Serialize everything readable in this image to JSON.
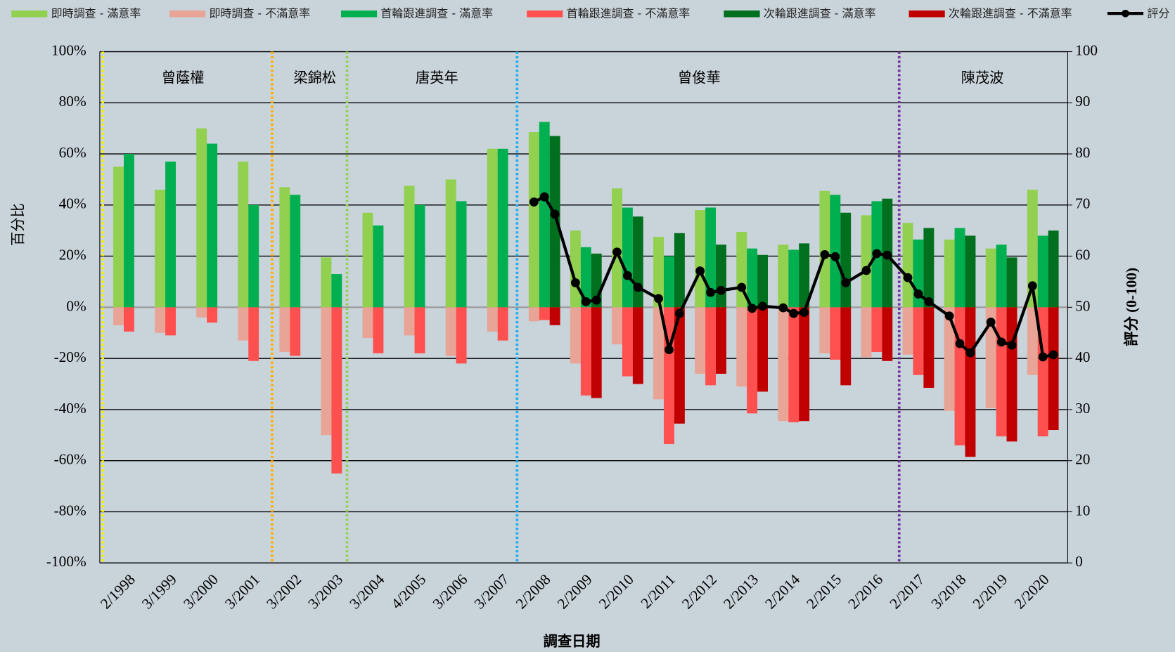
{
  "chart_data": {
    "type": "bar",
    "y_label": "百分比",
    "y2_label": "評分 (0-100)",
    "x_label": "調查日期",
    "categories": [
      "2/1998",
      "3/1999",
      "3/2000",
      "3/2001",
      "3/2002",
      "3/2003",
      "3/2004",
      "4/2005",
      "3/2006",
      "3/2007",
      "2/2008",
      "2/2009",
      "2/2010",
      "2/2011",
      "2/2012",
      "2/2013",
      "2/2014",
      "2/2015",
      "2/2016",
      "2/2017",
      "3/2018",
      "2/2019",
      "2/2020"
    ],
    "series": [
      {
        "name": "即時調查 - 滿意率",
        "color": "#92d050",
        "values": [
          55,
          46,
          70,
          57,
          47,
          19.5,
          37,
          47.5,
          50,
          62,
          68.5,
          30,
          46.5,
          27.5,
          38,
          29.5,
          24.5,
          45.5,
          36,
          33,
          26.5,
          23,
          46
        ]
      },
      {
        "name": "即時調查 - 不滿意率",
        "color": "#e8a496",
        "values": [
          -7,
          -10,
          -4,
          -13,
          -17.5,
          -50,
          -12,
          -11,
          -19,
          -9.5,
          -5.5,
          -22,
          -14.5,
          -36,
          -26,
          -31,
          -44.5,
          -18,
          -19.5,
          -18.5,
          -40.5,
          -39.5,
          -26.5
        ]
      },
      {
        "name": "首輪跟進調查 - 滿意率",
        "color": "#00b050",
        "values": [
          60,
          57,
          64,
          40,
          44,
          13,
          32,
          40,
          41.5,
          62,
          72.5,
          23.5,
          39,
          20,
          39,
          23,
          22.5,
          44,
          41.5,
          26.5,
          31,
          24.5,
          28
        ]
      },
      {
        "name": "首輪跟進調查 - 不滿意率",
        "color": "#ff5050",
        "values": [
          -9.5,
          -11,
          -6,
          -21,
          -19,
          -65,
          -18,
          -18,
          -22,
          -13,
          -5,
          -34.5,
          -27,
          -53.5,
          -30.5,
          -41.5,
          -45,
          -20.5,
          -17.5,
          -26.5,
          -54,
          -50.5,
          -50.5
        ]
      },
      {
        "name": "次輪跟進調查 - 滿意率",
        "color": "#006f1e",
        "values": [
          null,
          null,
          null,
          null,
          null,
          null,
          null,
          null,
          null,
          null,
          67,
          21,
          35.5,
          29,
          24.5,
          20.5,
          25,
          37,
          42.5,
          31,
          28,
          19.5,
          30
        ]
      },
      {
        "name": "次輪跟進調查 - 不滿意率",
        "color": "#c00000",
        "values": [
          null,
          null,
          null,
          null,
          null,
          null,
          null,
          null,
          null,
          null,
          -7,
          -35.5,
          -30,
          -45.5,
          -26,
          -33,
          -44.5,
          -30.5,
          -21,
          -31.5,
          -58.5,
          -52.5,
          -48
        ]
      },
      {
        "name": "評分",
        "color": "#000000",
        "axis": "y2",
        "values": [
          null,
          null,
          null,
          null,
          null,
          null,
          null,
          null,
          null,
          null,
          [
            70.6,
            71.6,
            68.2
          ],
          [
            54.8,
            51.1,
            51.4
          ],
          [
            60.8,
            56.2,
            53.9
          ],
          [
            51.7,
            41.7,
            48.8
          ],
          [
            57.1,
            52.9,
            53.3
          ],
          [
            53.9,
            49.8,
            50.2
          ],
          [
            49.9,
            48.8,
            49.0
          ],
          [
            60.3,
            59.9,
            54.8
          ],
          [
            57.2,
            60.5,
            60.2
          ],
          [
            55.8,
            52.6,
            51.1
          ],
          [
            48.3,
            42.9,
            41.1
          ],
          [
            47.1,
            43.2,
            42.6
          ],
          [
            54.2,
            40.3,
            40.7
          ]
        ]
      }
    ],
    "leaders": [
      {
        "name": "曾蔭權",
        "color": "#f2f200"
      },
      {
        "name": "梁錦松",
        "color": "#ffb000"
      },
      {
        "name": "唐英年",
        "color": "#92d050"
      },
      {
        "name": "曾俊華",
        "color": "#1ab0f0"
      },
      {
        "name": "陳茂波",
        "color": "#7030a0"
      }
    ],
    "ylim": [
      -100,
      100
    ],
    "yticks": [
      {
        "value": -100,
        "label": "-100%"
      },
      {
        "value": -80,
        "label": "-80%"
      },
      {
        "value": -60,
        "label": "-60%"
      },
      {
        "value": -40,
        "label": "-40%"
      },
      {
        "value": -20,
        "label": "-20%"
      },
      {
        "value": 0,
        "label": "0%"
      },
      {
        "value": 20,
        "label": "20%"
      },
      {
        "value": 40,
        "label": "40%"
      },
      {
        "value": 60,
        "label": "60%"
      },
      {
        "value": 80,
        "label": "80%"
      },
      {
        "value": 100,
        "label": "100%"
      }
    ],
    "y2lim": [
      0,
      100
    ],
    "y2ticks": [
      0,
      10,
      20,
      30,
      40,
      50,
      60,
      70,
      80,
      90,
      100
    ],
    "grid": true,
    "legend": "top"
  }
}
